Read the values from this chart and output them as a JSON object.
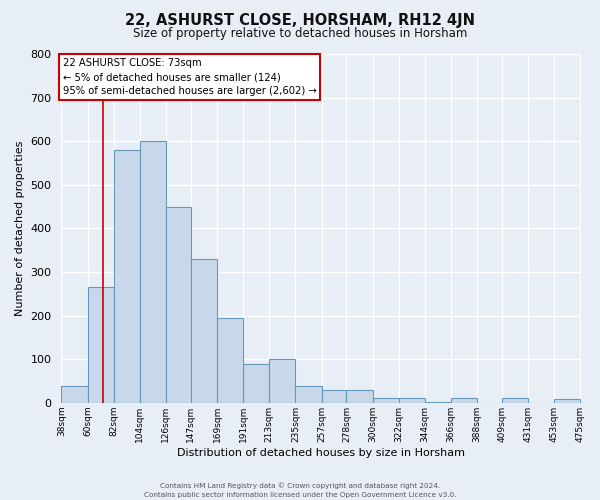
{
  "title": "22, ASHURST CLOSE, HORSHAM, RH12 4JN",
  "subtitle": "Size of property relative to detached houses in Horsham",
  "xlabel": "Distribution of detached houses by size in Horsham",
  "ylabel": "Number of detached properties",
  "bar_left_edges": [
    38,
    60,
    82,
    104,
    126,
    147,
    169,
    191,
    213,
    235,
    257,
    278,
    300,
    322,
    344,
    366,
    388,
    409,
    431,
    453
  ],
  "bar_widths": [
    22,
    22,
    22,
    22,
    21,
    22,
    22,
    22,
    22,
    22,
    21,
    22,
    22,
    22,
    22,
    22,
    21,
    22,
    22,
    22
  ],
  "bar_heights": [
    38,
    265,
    580,
    600,
    450,
    330,
    195,
    90,
    100,
    38,
    30,
    30,
    10,
    10,
    2,
    10,
    0,
    10,
    0,
    8
  ],
  "tick_labels": [
    "38sqm",
    "60sqm",
    "82sqm",
    "104sqm",
    "126sqm",
    "147sqm",
    "169sqm",
    "191sqm",
    "213sqm",
    "235sqm",
    "257sqm",
    "278sqm",
    "300sqm",
    "322sqm",
    "344sqm",
    "366sqm",
    "388sqm",
    "409sqm",
    "431sqm",
    "453sqm",
    "475sqm"
  ],
  "bar_color": "#c8d8ea",
  "bar_edge_color": "#6699bb",
  "bg_color": "#e8eef6",
  "grid_color": "#ffffff",
  "red_line_x": 73,
  "annotation_title": "22 ASHURST CLOSE: 73sqm",
  "annotation_line1": "← 5% of detached houses are smaller (124)",
  "annotation_line2": "95% of semi-detached houses are larger (2,602) →",
  "box_color": "#ffffff",
  "box_edge_color": "#cc0000",
  "ylim": [
    0,
    800
  ],
  "yticks": [
    0,
    100,
    200,
    300,
    400,
    500,
    600,
    700,
    800
  ],
  "footer1": "Contains HM Land Registry data © Crown copyright and database right 2024.",
  "footer2": "Contains public sector information licensed under the Open Government Licence v3.0."
}
